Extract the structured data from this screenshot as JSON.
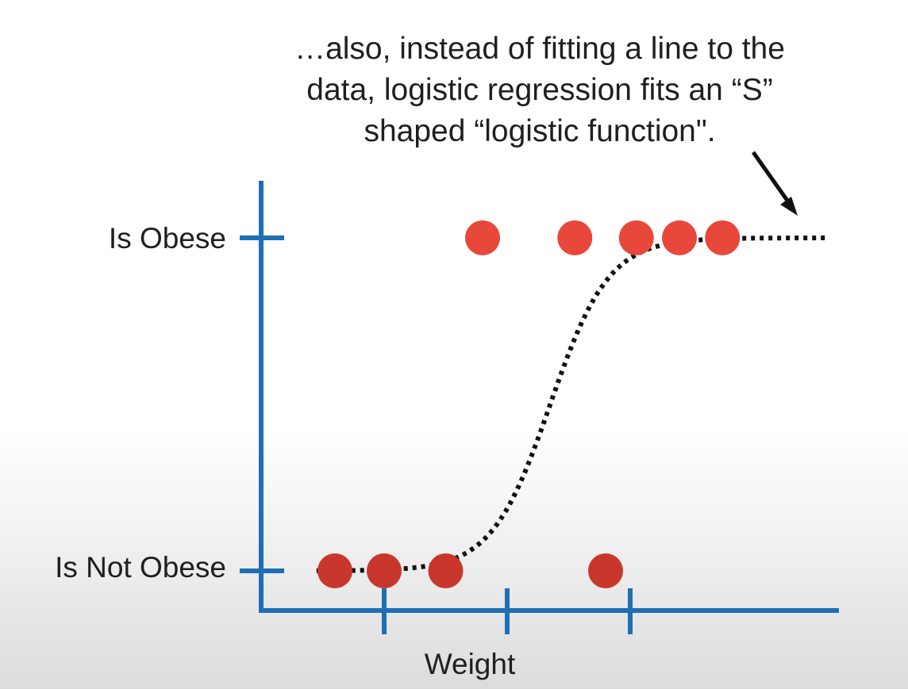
{
  "caption": {
    "lines": [
      "…also, instead of fitting a line to the",
      "data, logistic regression fits an “S”",
      "shaped “logistic function\"."
    ]
  },
  "colors": {
    "axis": "#1f6fb3",
    "point": "#e8473b",
    "point_dark": "#c9372c",
    "curve": "#111111",
    "arrow": "#111111"
  },
  "chart_data": {
    "type": "scatter",
    "title": "",
    "xlabel": "Weight",
    "ylabel": "",
    "y_categories": [
      "Is Not Obese",
      "Is Obese"
    ],
    "x_ticks_count": 3,
    "points": [
      {
        "x": 0.6,
        "y": 0
      },
      {
        "x": 1.0,
        "y": 0
      },
      {
        "x": 1.5,
        "y": 0
      },
      {
        "x": 2.8,
        "y": 0
      },
      {
        "x": 1.8,
        "y": 1
      },
      {
        "x": 2.55,
        "y": 1
      },
      {
        "x": 3.05,
        "y": 1
      },
      {
        "x": 3.4,
        "y": 1
      },
      {
        "x": 3.75,
        "y": 1
      }
    ],
    "curve": {
      "type": "logistic",
      "style": "dotted",
      "midpoint_x": 2.35,
      "steepness": 4.2,
      "x_range": [
        0.45,
        4.6
      ]
    },
    "annotation_arrow": "points to upper end of logistic curve"
  }
}
